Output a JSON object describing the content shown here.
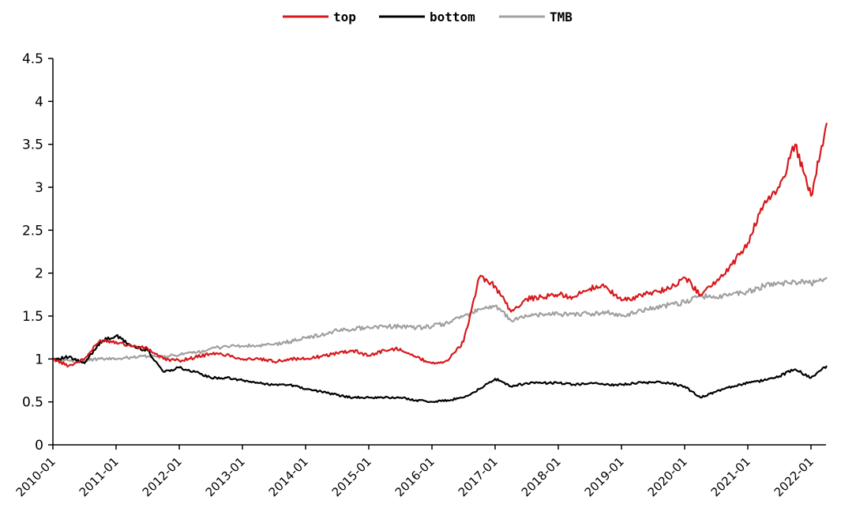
{
  "chart_data": {
    "type": "line",
    "title": "",
    "xlabel": "",
    "ylabel": "",
    "ylim": [
      0,
      4.5
    ],
    "y_ticks": [
      "0",
      "0.5",
      "1",
      "1.5",
      "2",
      "2.5",
      "3",
      "3.5",
      "4",
      "4.5"
    ],
    "x_ticks": [
      "2010-01",
      "2011-01",
      "2012-01",
      "2013-01",
      "2014-01",
      "2015-01",
      "2016-01",
      "2017-01",
      "2018-01",
      "2019-01",
      "2020-01",
      "2021-01",
      "2022-01"
    ],
    "xlim": [
      "2010-01",
      "2022-04"
    ],
    "grid": false,
    "legend_position": "top-center",
    "x": [
      "2010-01",
      "2010-04",
      "2010-07",
      "2010-10",
      "2011-01",
      "2011-04",
      "2011-07",
      "2011-10",
      "2012-01",
      "2012-04",
      "2012-07",
      "2012-10",
      "2013-01",
      "2013-04",
      "2013-07",
      "2013-10",
      "2014-01",
      "2014-04",
      "2014-07",
      "2014-10",
      "2015-01",
      "2015-04",
      "2015-07",
      "2015-10",
      "2016-01",
      "2016-04",
      "2016-07",
      "2016-10",
      "2017-01",
      "2017-04",
      "2017-07",
      "2017-10",
      "2018-01",
      "2018-04",
      "2018-07",
      "2018-10",
      "2019-01",
      "2019-04",
      "2019-07",
      "2019-10",
      "2020-01",
      "2020-04",
      "2020-07",
      "2020-10",
      "2021-01",
      "2021-04",
      "2021-07",
      "2021-10",
      "2022-01",
      "2022-04"
    ],
    "series": [
      {
        "name": "top",
        "color": "#d7191c",
        "values": [
          1.0,
          0.92,
          1.0,
          1.22,
          1.2,
          1.15,
          1.12,
          1.0,
          0.98,
          1.02,
          1.06,
          1.05,
          1.0,
          1.0,
          0.97,
          1.0,
          1.0,
          1.03,
          1.07,
          1.1,
          1.04,
          1.1,
          1.12,
          1.02,
          0.95,
          0.98,
          1.2,
          1.95,
          1.85,
          1.55,
          1.7,
          1.72,
          1.75,
          1.72,
          1.82,
          1.85,
          1.68,
          1.72,
          1.78,
          1.82,
          1.95,
          1.75,
          1.9,
          2.1,
          2.35,
          2.8,
          3.0,
          3.5,
          2.9,
          3.75
        ]
      },
      {
        "name": "bottom",
        "color": "#000000",
        "values": [
          1.0,
          1.02,
          0.95,
          1.2,
          1.27,
          1.15,
          1.1,
          0.85,
          0.9,
          0.85,
          0.78,
          0.78,
          0.75,
          0.72,
          0.7,
          0.7,
          0.65,
          0.62,
          0.58,
          0.55,
          0.55,
          0.55,
          0.55,
          0.52,
          0.5,
          0.52,
          0.55,
          0.65,
          0.77,
          0.68,
          0.72,
          0.72,
          0.72,
          0.7,
          0.72,
          0.7,
          0.7,
          0.72,
          0.73,
          0.72,
          0.68,
          0.55,
          0.62,
          0.68,
          0.72,
          0.75,
          0.8,
          0.88,
          0.78,
          0.92
        ]
      },
      {
        "name": "TMB",
        "color": "#a0a0a0",
        "values": [
          1.0,
          0.98,
          0.98,
          1.0,
          1.0,
          1.02,
          1.03,
          1.02,
          1.05,
          1.07,
          1.12,
          1.15,
          1.15,
          1.15,
          1.17,
          1.2,
          1.25,
          1.28,
          1.33,
          1.35,
          1.37,
          1.38,
          1.38,
          1.36,
          1.38,
          1.42,
          1.5,
          1.58,
          1.62,
          1.45,
          1.5,
          1.52,
          1.52,
          1.53,
          1.52,
          1.55,
          1.5,
          1.55,
          1.6,
          1.63,
          1.66,
          1.73,
          1.72,
          1.75,
          1.78,
          1.85,
          1.88,
          1.9,
          1.88,
          1.95
        ]
      }
    ]
  }
}
